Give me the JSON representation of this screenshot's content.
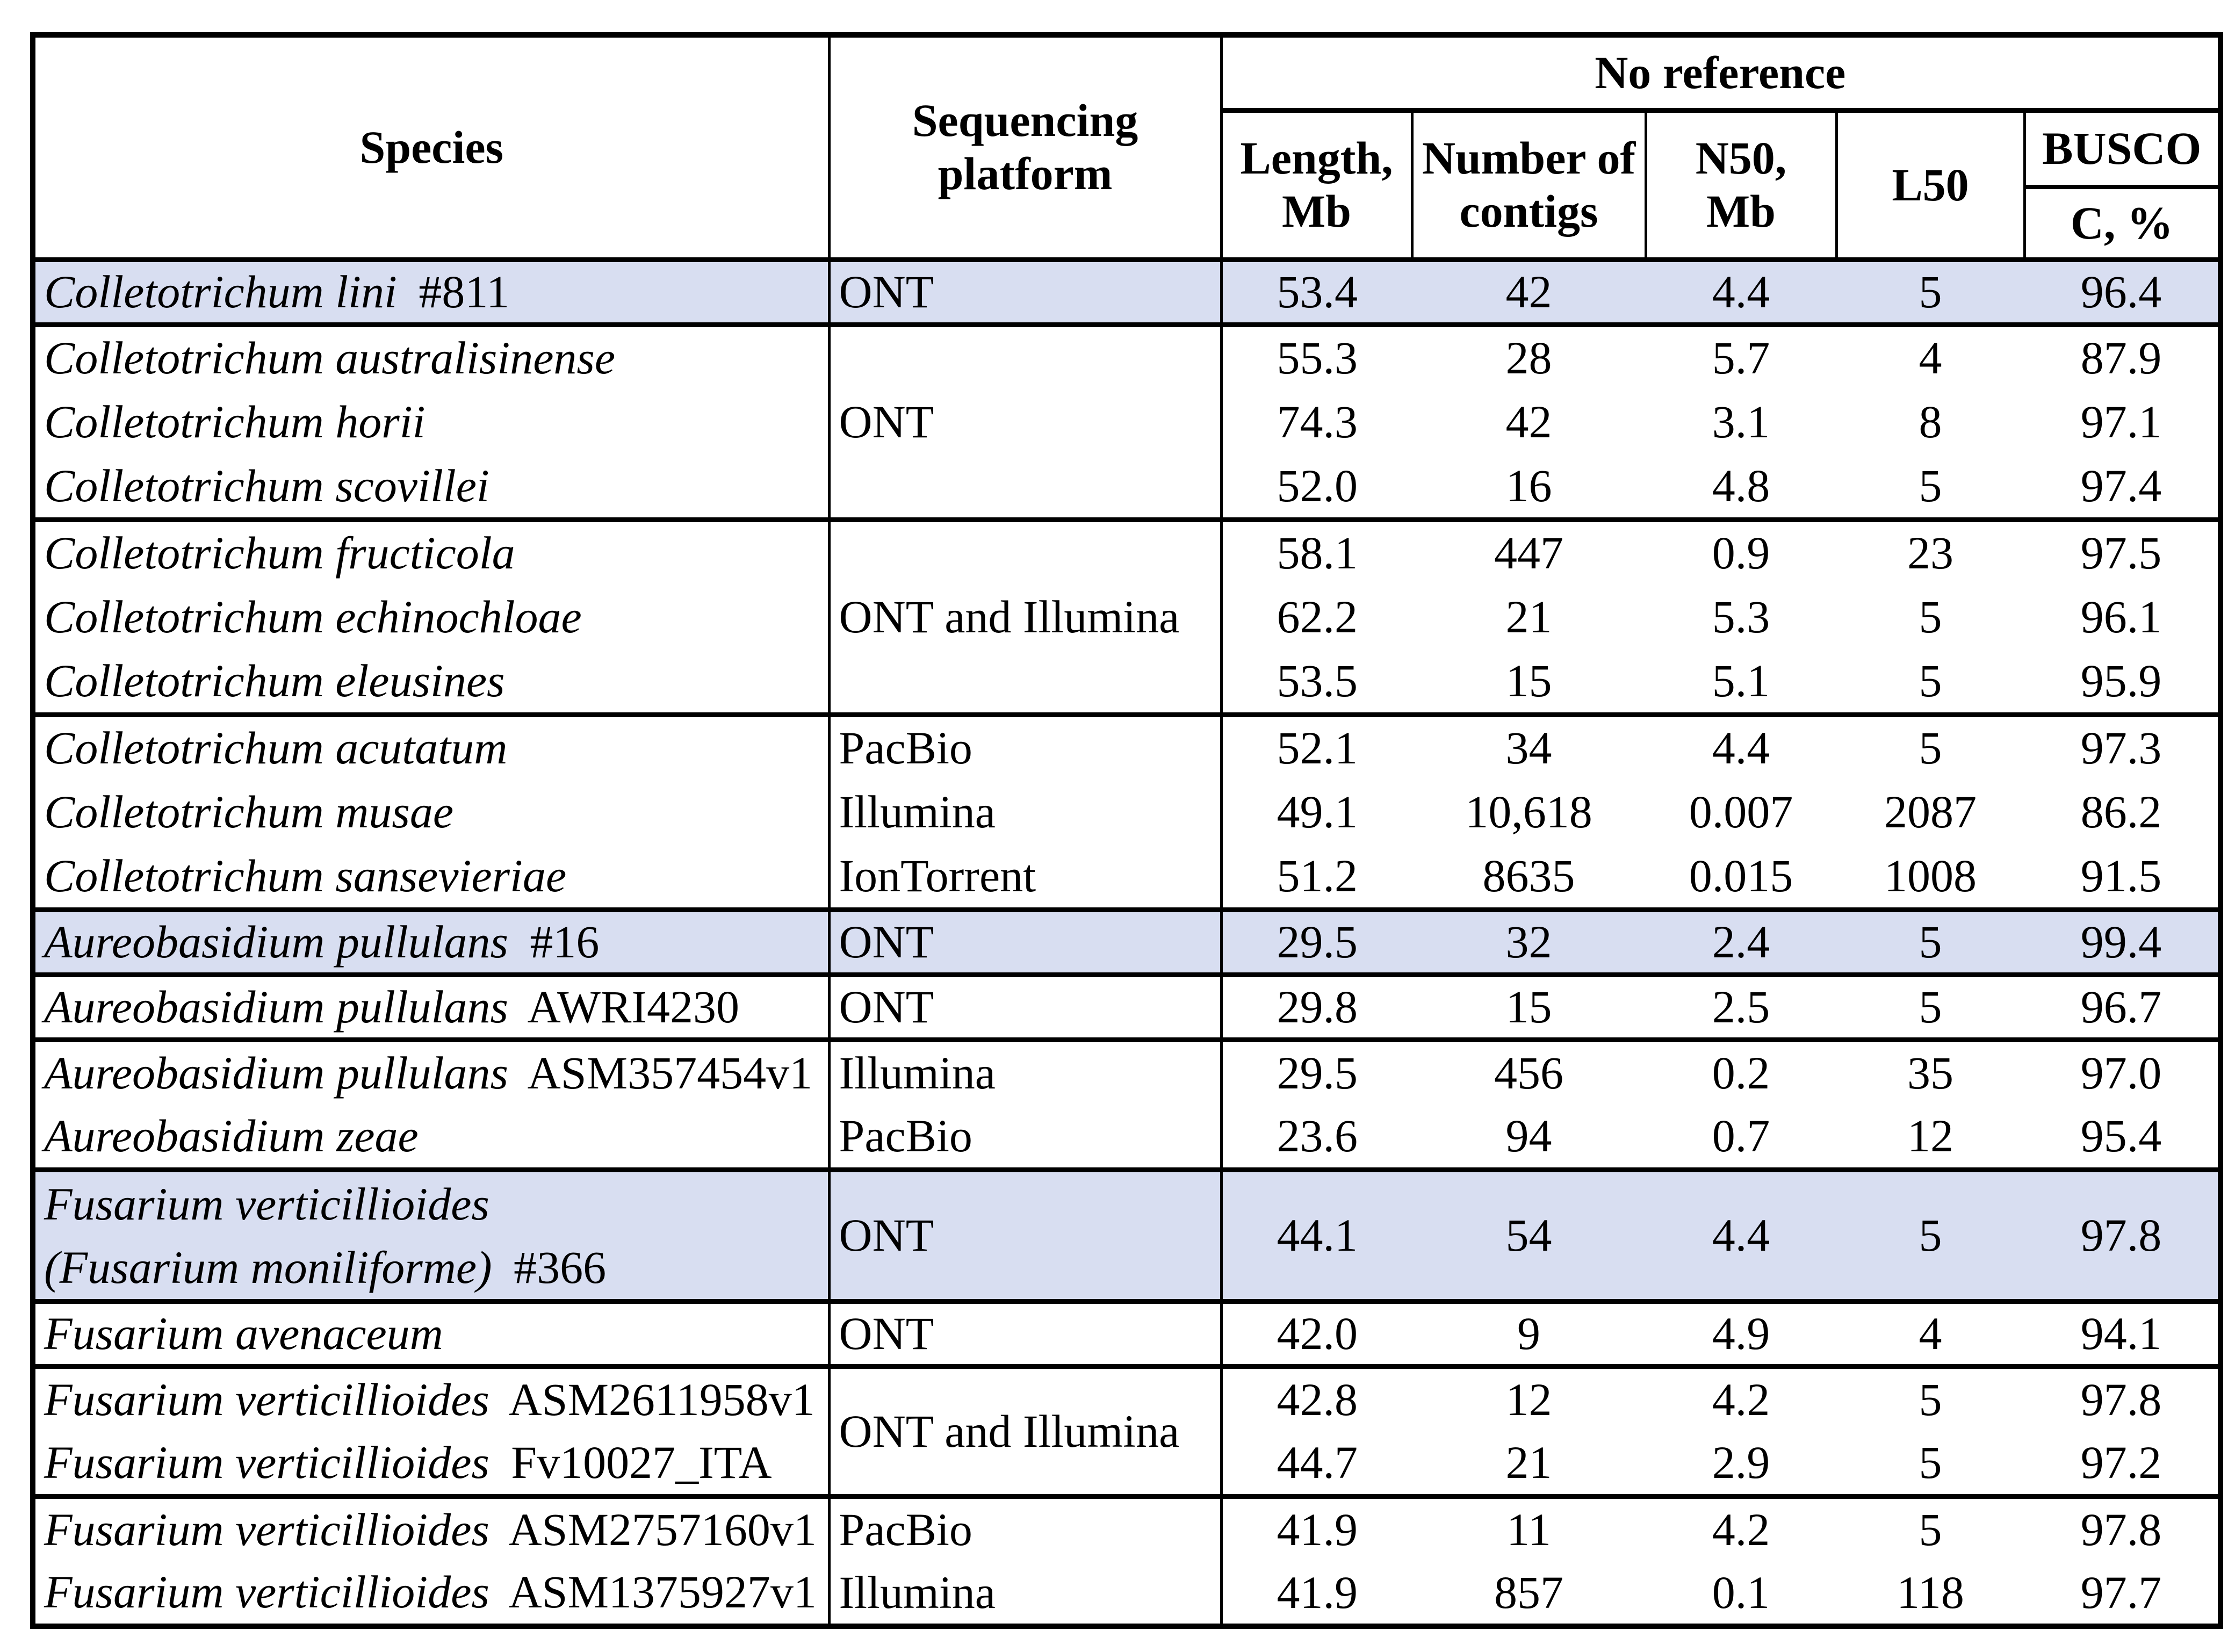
{
  "colors": {
    "highlight_row": "#D8DEF1",
    "border": "#000000",
    "background": "#FFFFFF",
    "text": "#000000"
  },
  "table": {
    "header": {
      "species": "Species",
      "platform_lines": [
        "Sequencing",
        "platform"
      ],
      "no_reference": "No reference",
      "subcolumns": [
        [
          "Length,",
          "Mb"
        ],
        [
          "Number of",
          "contigs"
        ],
        [
          "N50,",
          "Mb"
        ],
        [
          "L50"
        ],
        [
          "BUSCO"
        ]
      ],
      "busco_sub": "C, %"
    },
    "rows": [
      {
        "group_start": true,
        "highlight": true,
        "tall": false,
        "platform": "ONT",
        "platform_rowspan": 1,
        "species_lines": [
          [
            {
              "text": "Colletotrichum lini",
              "italic": true
            },
            {
              "text": " #811",
              "italic": false
            }
          ]
        ],
        "values": [
          "53.4",
          "42",
          "4.4",
          "5",
          "96.4"
        ]
      },
      {
        "group_start": true,
        "highlight": false,
        "tall": false,
        "platform": "ONT",
        "platform_rowspan": 3,
        "species_lines": [
          [
            {
              "text": "Colletotrichum australisinense",
              "italic": true
            }
          ]
        ],
        "values": [
          "55.3",
          "28",
          "5.7",
          "4",
          "87.9"
        ]
      },
      {
        "group_start": false,
        "highlight": false,
        "tall": false,
        "platform": null,
        "species_lines": [
          [
            {
              "text": "Colletotrichum horii",
              "italic": true
            }
          ]
        ],
        "values": [
          "74.3",
          "42",
          "3.1",
          "8",
          "97.1"
        ]
      },
      {
        "group_start": false,
        "highlight": false,
        "tall": false,
        "platform": null,
        "species_lines": [
          [
            {
              "text": "Colletotrichum scovillei",
              "italic": true
            }
          ]
        ],
        "values": [
          "52.0",
          "16",
          "4.8",
          "5",
          "97.4"
        ]
      },
      {
        "group_start": true,
        "highlight": false,
        "tall": false,
        "platform": "ONT and Illumina",
        "platform_rowspan": 3,
        "species_lines": [
          [
            {
              "text": "Colletotrichum fructicola",
              "italic": true
            }
          ]
        ],
        "values": [
          "58.1",
          "447",
          "0.9",
          "23",
          "97.5"
        ]
      },
      {
        "group_start": false,
        "highlight": false,
        "tall": false,
        "platform": null,
        "species_lines": [
          [
            {
              "text": "Colletotrichum echinochloae",
              "italic": true
            }
          ]
        ],
        "values": [
          "62.2",
          "21",
          "5.3",
          "5",
          "96.1"
        ]
      },
      {
        "group_start": false,
        "highlight": false,
        "tall": false,
        "platform": null,
        "species_lines": [
          [
            {
              "text": "Colletotrichum eleusines",
              "italic": true
            }
          ]
        ],
        "values": [
          "53.5",
          "15",
          "5.1",
          "5",
          "95.9"
        ]
      },
      {
        "group_start": true,
        "highlight": false,
        "tall": false,
        "platform": "PacBio",
        "platform_rowspan": 1,
        "species_lines": [
          [
            {
              "text": "Colletotrichum acutatum",
              "italic": true
            }
          ]
        ],
        "values": [
          "52.1",
          "34",
          "4.4",
          "5",
          "97.3"
        ]
      },
      {
        "group_start": false,
        "highlight": false,
        "tall": false,
        "platform": "Illumina",
        "platform_rowspan": 1,
        "species_lines": [
          [
            {
              "text": "Colletotrichum musae",
              "italic": true
            }
          ]
        ],
        "values": [
          "49.1",
          "10,618",
          "0.007",
          "2087",
          "86.2"
        ]
      },
      {
        "group_start": false,
        "highlight": false,
        "tall": false,
        "platform": "IonTorrent",
        "platform_rowspan": 1,
        "species_lines": [
          [
            {
              "text": "Colletotrichum sansevieriae",
              "italic": true
            }
          ]
        ],
        "values": [
          "51.2",
          "8635",
          "0.015",
          "1008",
          "91.5"
        ]
      },
      {
        "group_start": true,
        "highlight": true,
        "tall": false,
        "platform": "ONT",
        "platform_rowspan": 1,
        "species_lines": [
          [
            {
              "text": "Aureobasidium pullulans",
              "italic": true
            },
            {
              "text": " #16",
              "italic": false
            }
          ]
        ],
        "values": [
          "29.5",
          "32",
          "2.4",
          "5",
          "99.4"
        ]
      },
      {
        "group_start": true,
        "highlight": false,
        "tall": false,
        "platform": "ONT",
        "platform_rowspan": 1,
        "species_lines": [
          [
            {
              "text": "Aureobasidium pullulans",
              "italic": true
            },
            {
              "text": " AWRI4230",
              "italic": false
            }
          ]
        ],
        "values": [
          "29.8",
          "15",
          "2.5",
          "5",
          "96.7"
        ]
      },
      {
        "group_start": true,
        "highlight": false,
        "tall": false,
        "platform": "Illumina",
        "platform_rowspan": 1,
        "species_lines": [
          [
            {
              "text": "Aureobasidium pullulans",
              "italic": true
            },
            {
              "text": " ASM357454v1",
              "italic": false
            }
          ]
        ],
        "values": [
          "29.5",
          "456",
          "0.2",
          "35",
          "97.0"
        ]
      },
      {
        "group_start": false,
        "highlight": false,
        "tall": false,
        "platform": "PacBio",
        "platform_rowspan": 1,
        "species_lines": [
          [
            {
              "text": "Aureobasidium zeae",
              "italic": true
            }
          ]
        ],
        "values": [
          "23.6",
          "94",
          "0.7",
          "12",
          "95.4"
        ]
      },
      {
        "group_start": true,
        "highlight": true,
        "tall": true,
        "platform": "ONT",
        "platform_rowspan": 1,
        "species_lines": [
          [
            {
              "text": "Fusarium verticillioides",
              "italic": true
            }
          ],
          [
            {
              "text": "(Fusarium moniliforme)",
              "italic": true
            },
            {
              "text": " #366",
              "italic": false
            }
          ]
        ],
        "values": [
          "44.1",
          "54",
          "4.4",
          "5",
          "97.8"
        ]
      },
      {
        "group_start": true,
        "highlight": false,
        "tall": false,
        "platform": "ONT",
        "platform_rowspan": 1,
        "species_lines": [
          [
            {
              "text": "Fusarium avenaceum",
              "italic": true
            }
          ]
        ],
        "values": [
          "42.0",
          "9",
          "4.9",
          "4",
          "94.1"
        ]
      },
      {
        "group_start": true,
        "highlight": false,
        "tall": false,
        "platform": "ONT and Illumina",
        "platform_rowspan": 2,
        "species_lines": [
          [
            {
              "text": "Fusarium verticillioides",
              "italic": true
            },
            {
              "text": " ASM2611958v1",
              "italic": false
            }
          ]
        ],
        "values": [
          "42.8",
          "12",
          "4.2",
          "5",
          "97.8"
        ]
      },
      {
        "group_start": false,
        "highlight": false,
        "tall": false,
        "platform": null,
        "species_lines": [
          [
            {
              "text": "Fusarium verticillioides",
              "italic": true
            },
            {
              "text": " Fv10027_ITA",
              "italic": false
            }
          ]
        ],
        "values": [
          "44.7",
          "21",
          "2.9",
          "5",
          "97.2"
        ]
      },
      {
        "group_start": true,
        "highlight": false,
        "tall": false,
        "platform": "PacBio",
        "platform_rowspan": 1,
        "species_lines": [
          [
            {
              "text": "Fusarium verticillioides",
              "italic": true
            },
            {
              "text": " ASM2757160v1",
              "italic": false
            }
          ]
        ],
        "values": [
          "41.9",
          "11",
          "4.2",
          "5",
          "97.8"
        ]
      },
      {
        "group_start": false,
        "highlight": false,
        "tall": false,
        "platform": "Illumina",
        "platform_rowspan": 1,
        "species_lines": [
          [
            {
              "text": "Fusarium verticillioides",
              "italic": true
            },
            {
              "text": " ASM1375927v1",
              "italic": false
            }
          ]
        ],
        "values": [
          "41.9",
          "857",
          "0.1",
          "118",
          "97.7"
        ]
      }
    ]
  }
}
